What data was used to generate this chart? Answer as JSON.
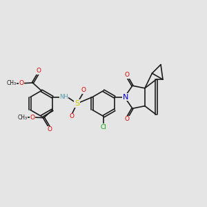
{
  "bg_color": "#e5e5e5",
  "bond_color": "#1a1a1a",
  "bond_width": 1.2,
  "dbo": 0.045,
  "atom_colors": {
    "O": "#dd0000",
    "N": "#0000cc",
    "S": "#cccc00",
    "Cl": "#00aa00",
    "NH": "#5599aa",
    "C": "#1a1a1a"
  },
  "fs": 6.5,
  "fs_s": 5.5,
  "figsize": [
    3.0,
    3.0
  ],
  "dpi": 100,
  "xlim": [
    0,
    10
  ],
  "ylim": [
    0,
    10
  ]
}
